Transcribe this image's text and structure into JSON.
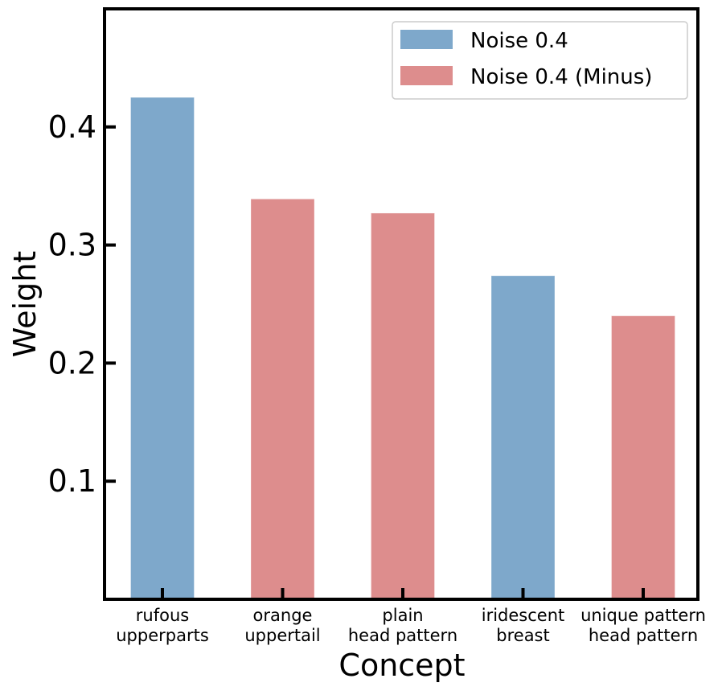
{
  "chart_data": {
    "type": "bar",
    "title": "",
    "xlabel": "Concept",
    "ylabel": "Weight",
    "ylim": [
      0.0,
      0.5
    ],
    "yticks": [
      0.1,
      0.2,
      0.3,
      0.4
    ],
    "ytick_labels": [
      "0.1",
      "0.2",
      "0.3",
      "0.4"
    ],
    "categories": [
      {
        "line1": "rufous",
        "line2": "upperparts"
      },
      {
        "line1": "orange",
        "line2": "uppertail"
      },
      {
        "line1": "plain",
        "line2": "head pattern"
      },
      {
        "line1": "iridescent",
        "line2": "breast"
      },
      {
        "line1": "unique pattern",
        "line2": "head pattern"
      }
    ],
    "values": [
      0.425,
      0.339,
      0.327,
      0.274,
      0.24
    ],
    "bar_series": [
      0,
      1,
      1,
      0,
      1
    ],
    "series": [
      {
        "name": "Noise 0.4",
        "color": "#7ea8cb"
      },
      {
        "name": "Noise 0.4 (Minus)",
        "color": "#dd8d8d"
      }
    ],
    "legend_position": "top-right",
    "grid": false
  }
}
